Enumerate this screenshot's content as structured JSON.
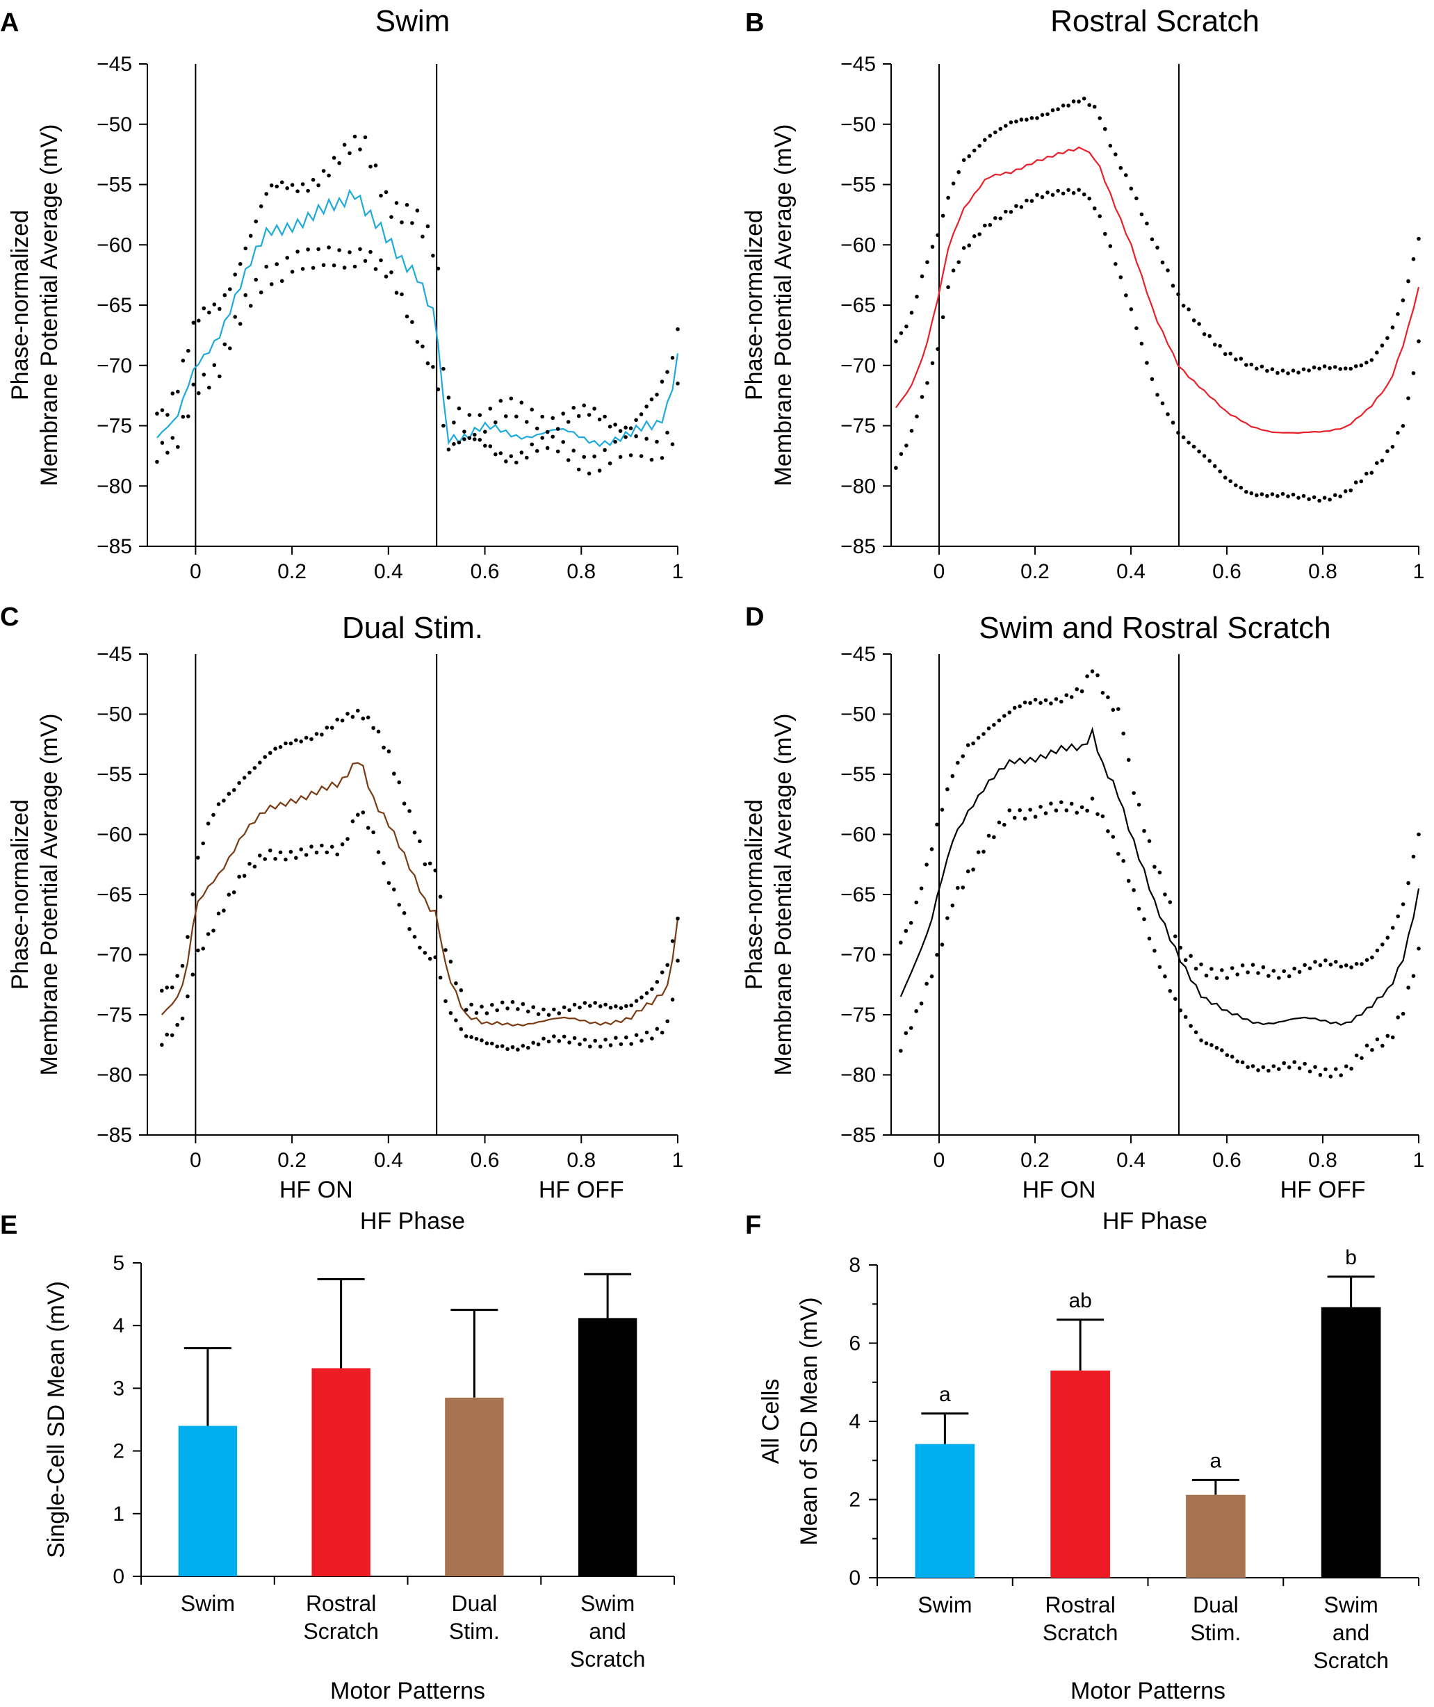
{
  "figure": {
    "colors": {
      "swim": "#1eaadc",
      "rostral_scratch": "#e8202a",
      "dual_stim": "#7a3b12",
      "swim_and_scratch": "#000000",
      "dual_bar": "#a87350"
    }
  },
  "chart_data": [
    {
      "id": "A",
      "letter": "A",
      "type": "line",
      "title": "Swim",
      "ylabel": [
        "Phase-normalized",
        "Membrane Potential Average (mV)"
      ],
      "xlabel": "",
      "phase_labels": [],
      "xlim": [
        -0.1,
        1.0
      ],
      "ylim": [
        -85,
        -45
      ],
      "xticks": [
        0,
        0.2,
        0.4,
        0.6,
        0.8,
        1
      ],
      "yticks": [
        -85,
        -80,
        -75,
        -70,
        -65,
        -60,
        -55,
        -50,
        -45
      ],
      "vlines": [
        0,
        0.5
      ],
      "series": [
        {
          "name": "mean",
          "color": "#1eaadc",
          "style": "line",
          "jitter": 1.0,
          "x": [
            -0.08,
            -0.04,
            0.0,
            0.05,
            0.1,
            0.15,
            0.2,
            0.25,
            0.3,
            0.33,
            0.38,
            0.43,
            0.46,
            0.5,
            0.52,
            0.56,
            0.6,
            0.7,
            0.8,
            0.9,
            0.96,
            0.98,
            1.0
          ],
          "y": [
            -76,
            -75,
            -70,
            -67,
            -63,
            -59,
            -58,
            -57.5,
            -57,
            -55.5,
            -58,
            -62,
            -63,
            -66,
            -75.5,
            -76,
            -75.5,
            -75.5,
            -76,
            -76,
            -75,
            -73,
            -69
          ]
        },
        {
          "name": "upper bound",
          "color": "#000000",
          "style": "dots",
          "jitter": 1.6,
          "x": [
            -0.08,
            -0.04,
            0.0,
            0.05,
            0.1,
            0.15,
            0.2,
            0.25,
            0.3,
            0.35,
            0.4,
            0.45,
            0.5,
            0.52,
            0.6,
            0.7,
            0.8,
            0.9,
            0.96,
            0.99,
            1.0
          ],
          "y": [
            -74,
            -72,
            -67,
            -65,
            -60,
            -56,
            -55.5,
            -54,
            -53,
            -52,
            -56,
            -57.5,
            -61.5,
            -73.5,
            -74.5,
            -74,
            -74.5,
            -74.5,
            -73,
            -70,
            -67
          ]
        },
        {
          "name": "lower bound",
          "color": "#000000",
          "style": "dots",
          "jitter": 1.6,
          "x": [
            -0.08,
            -0.04,
            0.0,
            0.05,
            0.1,
            0.15,
            0.2,
            0.25,
            0.3,
            0.35,
            0.4,
            0.45,
            0.5,
            0.52,
            0.6,
            0.7,
            0.8,
            0.9,
            0.96,
            0.99,
            1.0
          ],
          "y": [
            -78,
            -77,
            -71,
            -70,
            -66,
            -62,
            -61,
            -62,
            -61,
            -60,
            -63,
            -67,
            -70,
            -76.5,
            -77,
            -77,
            -77.5,
            -77.5,
            -76.5,
            -75,
            -71.5
          ]
        }
      ]
    },
    {
      "id": "B",
      "letter": "B",
      "type": "line",
      "title": "Rostral Scratch",
      "ylabel": [
        "Phase-normalized",
        "Membrane Potential Average (mV)"
      ],
      "xlabel": "",
      "phase_labels": [],
      "xlim": [
        -0.1,
        1.0
      ],
      "ylim": [
        -85,
        -45
      ],
      "xticks": [
        0,
        0.2,
        0.4,
        0.6,
        0.8,
        1
      ],
      "yticks": [
        -85,
        -80,
        -75,
        -70,
        -65,
        -60,
        -55,
        -50,
        -45
      ],
      "vlines": [
        0,
        0.5
      ],
      "series": [
        {
          "name": "mean",
          "color": "#e8202a",
          "style": "line",
          "jitter": 0.2,
          "x": [
            -0.09,
            -0.06,
            -0.03,
            0.0,
            0.02,
            0.05,
            0.1,
            0.15,
            0.2,
            0.25,
            0.3,
            0.33,
            0.36,
            0.4,
            0.45,
            0.5,
            0.55,
            0.6,
            0.65,
            0.7,
            0.75,
            0.8,
            0.85,
            0.9,
            0.94,
            0.97,
            1.0
          ],
          "y": [
            -73.5,
            -72,
            -69,
            -64,
            -60,
            -57,
            -54.5,
            -54,
            -53,
            -52.5,
            -52,
            -53,
            -56,
            -60,
            -66,
            -70,
            -72,
            -74,
            -75,
            -75.5,
            -75.7,
            -75.5,
            -75,
            -73.5,
            -71.5,
            -68,
            -63.5
          ]
        },
        {
          "name": "upper bound",
          "color": "#000000",
          "style": "dots",
          "jitter": 0.3,
          "x": [
            -0.09,
            -0.06,
            -0.03,
            0.0,
            0.02,
            0.05,
            0.1,
            0.15,
            0.2,
            0.25,
            0.3,
            0.33,
            0.36,
            0.4,
            0.45,
            0.5,
            0.55,
            0.6,
            0.65,
            0.7,
            0.75,
            0.8,
            0.85,
            0.9,
            0.94,
            0.97,
            1.0
          ],
          "y": [
            -68,
            -66,
            -62,
            -59,
            -56,
            -53,
            -51,
            -50,
            -49.5,
            -48.5,
            -48,
            -49,
            -52,
            -55,
            -60,
            -64.5,
            -67,
            -69,
            -70.2,
            -70.4,
            -70.4,
            -70.3,
            -70.3,
            -69.5,
            -67.5,
            -64.5,
            -59.5
          ]
        },
        {
          "name": "lower bound",
          "color": "#000000",
          "style": "dots",
          "jitter": 0.3,
          "x": [
            -0.09,
            -0.06,
            -0.03,
            0.0,
            0.02,
            0.05,
            0.1,
            0.15,
            0.2,
            0.25,
            0.3,
            0.33,
            0.36,
            0.4,
            0.45,
            0.5,
            0.55,
            0.6,
            0.65,
            0.7,
            0.75,
            0.8,
            0.85,
            0.9,
            0.94,
            0.97,
            1.0
          ],
          "y": [
            -78.5,
            -76,
            -72,
            -68,
            -63,
            -60.5,
            -58.5,
            -57,
            -56,
            -55.8,
            -55.5,
            -57,
            -60.5,
            -65.5,
            -72,
            -75.5,
            -77.5,
            -79.5,
            -80.5,
            -80.8,
            -81,
            -81,
            -80.5,
            -79,
            -77,
            -74.5,
            -68
          ]
        }
      ]
    },
    {
      "id": "C",
      "letter": "C",
      "type": "line",
      "title": "Dual Stim.",
      "ylabel": [
        "Phase-normalized",
        "Membrane Potential Average (mV)"
      ],
      "xlabel": "HF Phase",
      "phase_labels": [
        "HF ON",
        "HF OFF"
      ],
      "xlim": [
        -0.1,
        1.0
      ],
      "ylim": [
        -85,
        -45
      ],
      "xticks": [
        0,
        0.2,
        0.4,
        0.6,
        0.8,
        1
      ],
      "yticks": [
        -85,
        -80,
        -75,
        -70,
        -65,
        -60,
        -55,
        -50,
        -45
      ],
      "vlines": [
        0,
        0.5
      ],
      "series": [
        {
          "name": "mean",
          "color": "#7a3b12",
          "style": "line",
          "jitter": 0.5,
          "x": [
            -0.07,
            -0.04,
            -0.02,
            0.0,
            0.03,
            0.05,
            0.1,
            0.15,
            0.2,
            0.25,
            0.3,
            0.34,
            0.37,
            0.4,
            0.45,
            0.48,
            0.5,
            0.52,
            0.56,
            0.6,
            0.7,
            0.8,
            0.9,
            0.95,
            0.98,
            1.0
          ],
          "y": [
            -75,
            -74,
            -72,
            -66,
            -64,
            -63,
            -60,
            -58,
            -57,
            -56.5,
            -56,
            -53.5,
            -57,
            -59,
            -63.5,
            -66,
            -66.5,
            -71,
            -75,
            -76,
            -75.5,
            -75.5,
            -75.5,
            -74,
            -72.5,
            -67
          ]
        },
        {
          "name": "upper bound",
          "color": "#000000",
          "style": "dots",
          "jitter": 0.6,
          "x": [
            -0.07,
            -0.04,
            -0.02,
            0.0,
            0.03,
            0.05,
            0.1,
            0.15,
            0.2,
            0.25,
            0.3,
            0.34,
            0.37,
            0.4,
            0.45,
            0.48,
            0.5,
            0.52,
            0.56,
            0.6,
            0.7,
            0.8,
            0.9,
            0.95,
            0.98,
            1.0
          ],
          "y": [
            -73,
            -72,
            -70,
            -63,
            -59,
            -57.5,
            -55,
            -53.5,
            -52.5,
            -51.5,
            -50.5,
            -50.2,
            -51,
            -53,
            -59,
            -63,
            -63,
            -70,
            -74,
            -74.5,
            -74.5,
            -74.5,
            -74,
            -73,
            -71,
            -67
          ]
        },
        {
          "name": "lower bound",
          "color": "#000000",
          "style": "dots",
          "jitter": 0.6,
          "x": [
            -0.07,
            -0.04,
            -0.02,
            0.0,
            0.03,
            0.05,
            0.1,
            0.15,
            0.2,
            0.25,
            0.3,
            0.34,
            0.37,
            0.4,
            0.45,
            0.48,
            0.5,
            0.52,
            0.56,
            0.6,
            0.7,
            0.8,
            0.9,
            0.95,
            0.98,
            1.0
          ],
          "y": [
            -77.5,
            -76.5,
            -74.5,
            -70,
            -68,
            -66.5,
            -63.5,
            -61.5,
            -61.5,
            -61.5,
            -61.5,
            -57.5,
            -60,
            -64,
            -68.5,
            -70,
            -70,
            -74,
            -77,
            -77.5,
            -77.5,
            -77,
            -77.5,
            -76.5,
            -75.5,
            -70.5
          ]
        }
      ]
    },
    {
      "id": "D",
      "letter": "D",
      "type": "line",
      "title": "Swim and Rostral Scratch",
      "ylabel": [
        "Phase-normalized",
        "Membrane Potential Average (mV)"
      ],
      "xlabel": "HF Phase",
      "phase_labels": [
        "HF ON",
        "HF OFF"
      ],
      "xlim": [
        -0.1,
        1.0
      ],
      "ylim": [
        -85,
        -45
      ],
      "xticks": [
        0,
        0.2,
        0.4,
        0.6,
        0.8,
        1
      ],
      "yticks": [
        -85,
        -80,
        -75,
        -70,
        -65,
        -60,
        -55,
        -50,
        -45
      ],
      "vlines": [
        0,
        0.5
      ],
      "series": [
        {
          "name": "mean",
          "color": "#000000",
          "style": "line",
          "jitter": 0.5,
          "x": [
            -0.08,
            -0.05,
            -0.02,
            0.0,
            0.03,
            0.06,
            0.1,
            0.15,
            0.2,
            0.25,
            0.3,
            0.32,
            0.34,
            0.37,
            0.4,
            0.45,
            0.48,
            0.5,
            0.55,
            0.6,
            0.65,
            0.7,
            0.75,
            0.8,
            0.85,
            0.9,
            0.94,
            0.97,
            1.0
          ],
          "y": [
            -73.5,
            -71,
            -68,
            -64.5,
            -60,
            -58,
            -56,
            -54,
            -53.5,
            -53,
            -53,
            -51.5,
            -54,
            -56,
            -60,
            -66,
            -68.5,
            -70,
            -73.5,
            -75,
            -75.5,
            -75.5,
            -75.5,
            -75.5,
            -75.5,
            -74.5,
            -73,
            -70,
            -64.5
          ]
        },
        {
          "name": "upper bound",
          "color": "#000000",
          "style": "dots",
          "jitter": 0.7,
          "x": [
            -0.08,
            -0.05,
            -0.02,
            0.0,
            0.03,
            0.06,
            0.1,
            0.15,
            0.2,
            0.25,
            0.3,
            0.32,
            0.35,
            0.38,
            0.4,
            0.45,
            0.48,
            0.5,
            0.55,
            0.6,
            0.65,
            0.7,
            0.75,
            0.8,
            0.85,
            0.9,
            0.94,
            0.97,
            1.0
          ],
          "y": [
            -69,
            -66,
            -62,
            -59,
            -55,
            -52.5,
            -51,
            -50,
            -49,
            -48.5,
            -48,
            -46.5,
            -49,
            -50,
            -55,
            -62.5,
            -66,
            -70,
            -71,
            -71.5,
            -71.5,
            -71.5,
            -71,
            -71,
            -71,
            -70,
            -68.5,
            -66,
            -60
          ]
        },
        {
          "name": "lower bound",
          "color": "#000000",
          "style": "dots",
          "jitter": 0.7,
          "x": [
            -0.08,
            -0.05,
            -0.02,
            0.0,
            0.03,
            0.06,
            0.1,
            0.15,
            0.2,
            0.25,
            0.3,
            0.32,
            0.35,
            0.38,
            0.4,
            0.45,
            0.48,
            0.5,
            0.55,
            0.6,
            0.65,
            0.7,
            0.75,
            0.8,
            0.85,
            0.9,
            0.94,
            0.97,
            1.0
          ],
          "y": [
            -78,
            -75.5,
            -72,
            -69.5,
            -65,
            -63.5,
            -61,
            -58,
            -58,
            -58,
            -58,
            -57,
            -59,
            -62,
            -64.5,
            -70,
            -72.5,
            -74,
            -77.5,
            -78.5,
            -79,
            -79.5,
            -79.5,
            -79.5,
            -79.5,
            -78,
            -77,
            -74,
            -69.5
          ]
        }
      ]
    },
    {
      "id": "E",
      "letter": "E",
      "type": "bar",
      "title": "",
      "ylabel": [
        "Single-Cell SD Mean (mV)"
      ],
      "xlabel": "Motor Patterns",
      "ylim": [
        0,
        5
      ],
      "yticks": [
        0,
        1,
        2,
        3,
        4,
        5
      ],
      "minor_step": 0,
      "categories": [
        [
          "Swim"
        ],
        [
          "Rostral",
          "Scratch"
        ],
        [
          "Dual",
          "Stim."
        ],
        [
          "Swim",
          "and",
          "Scratch"
        ]
      ],
      "values": [
        2.4,
        3.32,
        2.85,
        4.12
      ],
      "errors": [
        1.24,
        1.42,
        1.4,
        0.7
      ],
      "colors": [
        "#00aeef",
        "#ed1c24",
        "#a87350",
        "#000000"
      ],
      "significance": []
    },
    {
      "id": "F",
      "letter": "F",
      "type": "bar",
      "title": "",
      "ylabel": [
        "All Cells",
        "Mean of SD Mean (mV)"
      ],
      "xlabel": "Motor Patterns",
      "ylim": [
        0,
        8
      ],
      "yticks": [
        0,
        2,
        4,
        6,
        8
      ],
      "minor_step": 1,
      "categories": [
        [
          "Swim"
        ],
        [
          "Rostral",
          "Scratch"
        ],
        [
          "Dual",
          "Stim."
        ],
        [
          "Swim",
          "and",
          "Scratch"
        ]
      ],
      "values": [
        3.42,
        5.3,
        2.12,
        6.92
      ],
      "errors": [
        0.78,
        1.3,
        0.38,
        0.78
      ],
      "colors": [
        "#00aeef",
        "#ed1c24",
        "#a87350",
        "#000000"
      ],
      "significance": [
        "a",
        "ab",
        "a",
        "b"
      ]
    }
  ]
}
